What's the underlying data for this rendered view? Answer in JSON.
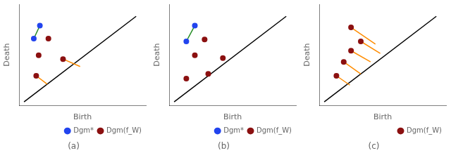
{
  "chart_data": [
    {
      "type": "scatter",
      "title": "(a)",
      "x_label": "Birth",
      "y_label": "Death",
      "xlim": [
        -0.04,
        1.0
      ],
      "ylim": [
        -0.04,
        1.05
      ],
      "tick_labels": false,
      "grid": false,
      "legend": "lower right",
      "series": [
        {
          "name": "Dgm*",
          "color": "#2244ee",
          "marker": "circle",
          "x": [
            0.13,
            0.08
          ],
          "values": [
            0.82,
            0.68
          ]
        },
        {
          "name": "Dgm(f_W)",
          "color": "#8B1010",
          "marker": "circle",
          "x": [
            0.2,
            0.12,
            0.32,
            0.1
          ],
          "values": [
            0.68,
            0.5,
            0.46,
            0.28
          ]
        },
        {
          "type": "line",
          "color": "#228B22",
          "x": [
            0.13,
            0.08
          ],
          "values": [
            0.82,
            0.68
          ]
        },
        {
          "type": "line",
          "color": "#FF8C00",
          "x": [
            0.32,
            0.46
          ],
          "values": [
            0.46,
            0.38
          ]
        },
        {
          "type": "line",
          "color": "#FF8C00",
          "x": [
            0.1,
            0.19
          ],
          "values": [
            0.28,
            0.19
          ]
        },
        {
          "type": "line",
          "color": "#000000",
          "x": [
            0.0,
            0.92
          ],
          "values": [
            0.0,
            0.92
          ]
        }
      ]
    },
    {
      "type": "scatter",
      "title": "(b)",
      "x_label": "Birth",
      "y_label": "Death",
      "xlim": [
        -0.04,
        1.0
      ],
      "ylim": [
        -0.04,
        1.05
      ],
      "tick_labels": false,
      "grid": false,
      "legend": "lower right",
      "series": [
        {
          "name": "Dgm*",
          "color": "#2244ee",
          "marker": "circle",
          "x": [
            0.17,
            0.1
          ],
          "values": [
            0.82,
            0.65
          ]
        },
        {
          "name": "Dgm(f_W)",
          "color": "#8B1010",
          "marker": "circle",
          "x": [
            0.25,
            0.17,
            0.4,
            0.1,
            0.28
          ],
          "values": [
            0.67,
            0.5,
            0.47,
            0.25,
            0.3
          ]
        },
        {
          "type": "line",
          "color": "#228B22",
          "x": [
            0.17,
            0.1
          ],
          "values": [
            0.82,
            0.65
          ]
        },
        {
          "type": "line",
          "color": "#000000",
          "x": [
            0.0,
            0.92
          ],
          "values": [
            0.0,
            0.92
          ]
        }
      ]
    },
    {
      "type": "scatter",
      "title": "(c)",
      "x_label": "Birth",
      "y_label": "Death",
      "xlim": [
        -0.04,
        1.0
      ],
      "ylim": [
        -0.04,
        1.05
      ],
      "tick_labels": false,
      "grid": false,
      "legend": "lower right",
      "series": [
        {
          "name": "Dgm(f_W)",
          "color": "#8B1010",
          "marker": "circle",
          "x": [
            0.22,
            0.3,
            0.22,
            0.16,
            0.1
          ],
          "values": [
            0.8,
            0.65,
            0.55,
            0.43,
            0.28
          ]
        },
        {
          "type": "line",
          "color": "#FF8C00",
          "x": [
            0.22,
            0.42
          ],
          "values": [
            0.8,
            0.62
          ]
        },
        {
          "type": "line",
          "color": "#FF8C00",
          "x": [
            0.3,
            0.46
          ],
          "values": [
            0.65,
            0.52
          ]
        },
        {
          "type": "line",
          "color": "#FF8C00",
          "x": [
            0.22,
            0.38
          ],
          "values": [
            0.55,
            0.43
          ]
        },
        {
          "type": "line",
          "color": "#FF8C00",
          "x": [
            0.16,
            0.3
          ],
          "values": [
            0.43,
            0.3
          ]
        },
        {
          "type": "line",
          "color": "#FF8C00",
          "x": [
            0.1,
            0.21
          ],
          "values": [
            0.28,
            0.18
          ]
        },
        {
          "type": "line",
          "color": "#000000",
          "x": [
            0.0,
            0.92
          ],
          "values": [
            0.0,
            0.92
          ]
        }
      ]
    }
  ]
}
